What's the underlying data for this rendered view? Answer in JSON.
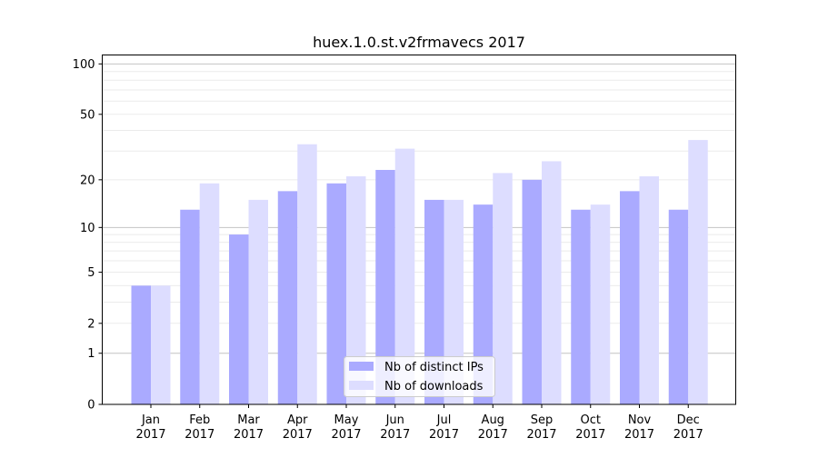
{
  "chart_data": {
    "type": "bar",
    "title": "huex.1.0.st.v2frmavecs 2017",
    "xlabel": "",
    "ylabel": "",
    "yscale": "log(1+x)",
    "ylim": [
      0,
      113
    ],
    "yticks": [
      0,
      1,
      2,
      5,
      10,
      20,
      50,
      100
    ],
    "grid": "horizontal major and minor",
    "legend_position": "lower center",
    "categories": [
      "Jan\n2017",
      "Feb\n2017",
      "Mar\n2017",
      "Apr\n2017",
      "May\n2017",
      "Jun\n2017",
      "Jul\n2017",
      "Aug\n2017",
      "Sep\n2017",
      "Oct\n2017",
      "Nov\n2017",
      "Dec\n2017"
    ],
    "series": [
      {
        "name": "Nb of distinct IPs",
        "color": "#aaaaff",
        "values": [
          4,
          13,
          9,
          17,
          19,
          23,
          15,
          14,
          20,
          13,
          17,
          13
        ]
      },
      {
        "name": "Nb of downloads",
        "color": "#ddddff",
        "values": [
          4,
          19,
          15,
          33,
          21,
          31,
          15,
          22,
          26,
          14,
          21,
          35
        ]
      }
    ]
  }
}
